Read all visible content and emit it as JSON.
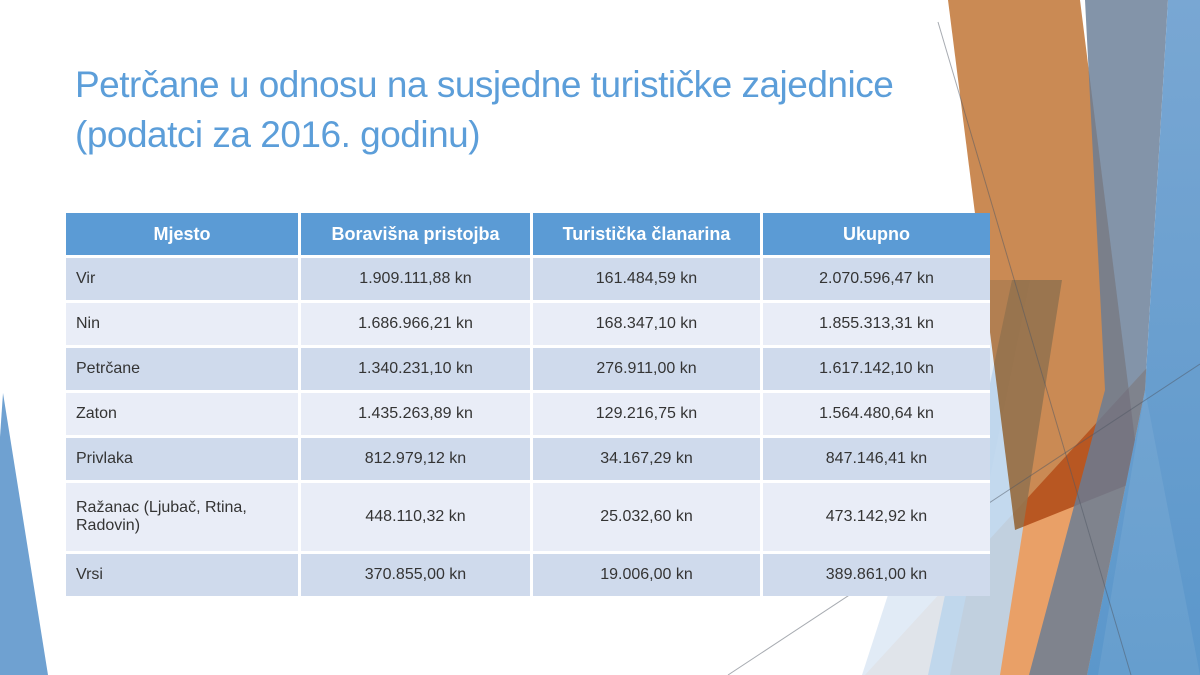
{
  "slide": {
    "title": "Petrčane u odnosu na susjedne turističke zajednice (podatci za 2016. godinu)",
    "table": {
      "columns": [
        "Mjesto",
        "Boravišna pristojba",
        "Turistička članarina",
        "Ukupno"
      ],
      "rows": [
        [
          "Vir",
          "1.909.111,88 kn",
          "161.484,59 kn",
          "2.070.596,47 kn"
        ],
        [
          "Nin",
          "1.686.966,21 kn",
          "168.347,10 kn",
          "1.855.313,31 kn"
        ],
        [
          "Petrčane",
          "1.340.231,10 kn",
          "276.911,00 kn",
          "1.617.142,10 kn"
        ],
        [
          "Zaton",
          "1.435.263,89 kn",
          "129.216,75 kn",
          "1.564.480,64 kn"
        ],
        [
          "Privlaka",
          "812.979,12 kn",
          "34.167,29 kn",
          "847.146,41 kn"
        ],
        [
          "Ražanac (Ljubač, Rtina, Radovin)",
          "448.110,32 kn",
          "25.032,60 kn",
          "473.142,92 kn"
        ],
        [
          "Vrsi",
          "370.855,00 kn",
          "19.006,00 kn",
          "389.861,00 kn"
        ]
      ]
    },
    "colors": {
      "title_text": "#5C9ED9",
      "table_header_bg": "#5B9BD5",
      "table_header_text": "#FFFFFF",
      "row_band_dark": "#CFDAEC",
      "row_band_light": "#E9EDF7",
      "cell_text": "#343434",
      "decor_orange_ribbon": "#CA8A54",
      "decor_orange_band": "#E9A067",
      "decor_blue_chevron": "#5B97CB",
      "decor_slate_band": "#68789A",
      "decor_pale_blue": "#BCD5EC",
      "decor_left_wedge": "#6FA1D1"
    }
  }
}
